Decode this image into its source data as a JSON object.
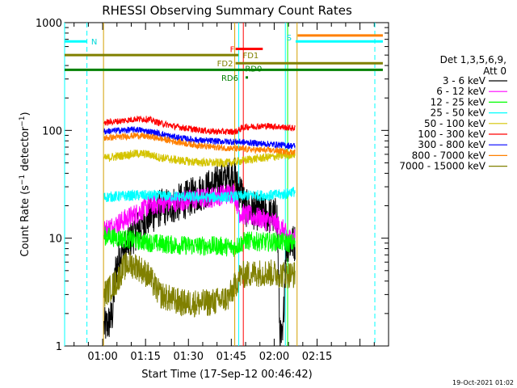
{
  "chart_data": {
    "type": "line",
    "title": "RHESSI Observing Summary Count Rates",
    "xlabel": "Start Time (17-Sep-12 00:46:42)",
    "ylabel": "Count Rate (s⁻¹ detector⁻¹)",
    "ylabel_main": "Count Rate (s",
    "ylabel_sup1": "−1",
    "ylabel_mid": " detector",
    "ylabel_sup2": "−1",
    "ylabel_end": ")",
    "yscale": "log",
    "ylim": [
      1,
      1000
    ],
    "xlim_minutes": [
      46.7,
      160
    ],
    "x_ticks": [
      {
        "m": 60,
        "label": "01:00"
      },
      {
        "m": 75,
        "label": "01:15"
      },
      {
        "m": 90,
        "label": "01:30"
      },
      {
        "m": 105,
        "label": "01:45"
      },
      {
        "m": 120,
        "label": "02:00"
      },
      {
        "m": 135,
        "label": "02:15"
      }
    ],
    "y_ticks": [
      {
        "v": 1,
        "label": "1"
      },
      {
        "v": 10,
        "label": "10"
      },
      {
        "v": 100,
        "label": "100"
      },
      {
        "v": 1000,
        "label": "1000"
      }
    ],
    "legend": {
      "placement": "right",
      "header": [
        "Det 1,3,5,6,9,",
        "Att 0"
      ],
      "entries": [
        {
          "label": "3 - 6 keV",
          "color": "#000000"
        },
        {
          "label": "6 - 12 keV",
          "color": "#ff00ff"
        },
        {
          "label": "12 - 25 keV",
          "color": "#00ff00"
        },
        {
          "label": "25 - 50 keV",
          "color": "#00ffff"
        },
        {
          "label": "50 - 100 keV",
          "color": "#d4c400"
        },
        {
          "label": "100 - 300 keV",
          "color": "#ff0000"
        },
        {
          "label": "300 - 800 keV",
          "color": "#0000ff"
        },
        {
          "label": "800 - 7000 keV",
          "color": "#ff8000"
        },
        {
          "label": "7000 - 15000 keV",
          "color": "#808000"
        }
      ]
    },
    "data_window_minutes": [
      60.5,
      127.3
    ],
    "series": [
      {
        "name": "3 - 6 keV",
        "color": "#000000",
        "points": [
          [
            60.5,
            1.5
          ],
          [
            62,
            1.6
          ],
          [
            63.5,
            2
          ],
          [
            64.5,
            5
          ],
          [
            66,
            7
          ],
          [
            68,
            8
          ],
          [
            70,
            10
          ],
          [
            72,
            12
          ],
          [
            75,
            15
          ],
          [
            78,
            17
          ],
          [
            80,
            19
          ],
          [
            84,
            20
          ],
          [
            88,
            22
          ],
          [
            92,
            25
          ],
          [
            96,
            28
          ],
          [
            100,
            32
          ],
          [
            104,
            37
          ],
          [
            106,
            39
          ],
          [
            107,
            30
          ],
          [
            108.5,
            27
          ],
          [
            110,
            19
          ],
          [
            113,
            18
          ],
          [
            116,
            17
          ],
          [
            119,
            16
          ],
          [
            121,
            16
          ],
          [
            122,
            1.2
          ],
          [
            123,
            1.1
          ],
          [
            124,
            8
          ],
          [
            125,
            9
          ]
        ]
      },
      {
        "name": "6 - 12 keV",
        "color": "#ff00ff",
        "points": [
          [
            60.5,
            12
          ],
          [
            64,
            13
          ],
          [
            66,
            14
          ],
          [
            68,
            15
          ],
          [
            72,
            17
          ],
          [
            76,
            20
          ],
          [
            80,
            21
          ],
          [
            86,
            22
          ],
          [
            92,
            23
          ],
          [
            98,
            24
          ],
          [
            104,
            26
          ],
          [
            106,
            27
          ],
          [
            108,
            17
          ],
          [
            112,
            16
          ],
          [
            116,
            15
          ],
          [
            120,
            14
          ],
          [
            123,
            12
          ],
          [
            125,
            10
          ]
        ]
      },
      {
        "name": "12 - 25 keV",
        "color": "#00ff00",
        "points": [
          [
            60.5,
            10.5
          ],
          [
            66,
            10
          ],
          [
            72,
            9.5
          ],
          [
            78,
            9
          ],
          [
            84,
            8.7
          ],
          [
            92,
            8.5
          ],
          [
            100,
            8.5
          ],
          [
            106,
            8.2
          ],
          [
            110,
            9.5
          ],
          [
            114,
            9.3
          ],
          [
            118,
            9.2
          ],
          [
            122,
            9.3
          ],
          [
            125,
            9
          ]
        ]
      },
      {
        "name": "25 - 50 keV",
        "color": "#00ffff",
        "points": [
          [
            60.5,
            24
          ],
          [
            66,
            24.5
          ],
          [
            72,
            25
          ],
          [
            78,
            24.8
          ],
          [
            84,
            24.5
          ],
          [
            90,
            24.2
          ],
          [
            96,
            24
          ],
          [
            102,
            24
          ],
          [
            107,
            24.5
          ],
          [
            112,
            25
          ],
          [
            118,
            25
          ],
          [
            124,
            25.5
          ],
          [
            126,
            27
          ]
        ]
      },
      {
        "name": "50 - 100 keV",
        "color": "#d4c400",
        "points": [
          [
            60.5,
            55
          ],
          [
            66,
            58
          ],
          [
            72,
            61
          ],
          [
            76,
            60
          ],
          [
            80,
            56
          ],
          [
            86,
            53
          ],
          [
            92,
            51
          ],
          [
            98,
            50
          ],
          [
            104,
            50
          ],
          [
            108,
            52
          ],
          [
            114,
            55
          ],
          [
            120,
            57
          ],
          [
            126,
            60
          ]
        ]
      },
      {
        "name": "100 - 300 keV",
        "color": "#ff0000",
        "points": [
          [
            60.5,
            118
          ],
          [
            66,
            122
          ],
          [
            72,
            128
          ],
          [
            76,
            127
          ],
          [
            80,
            117
          ],
          [
            86,
            108
          ],
          [
            92,
            102
          ],
          [
            98,
            98
          ],
          [
            104,
            97
          ],
          [
            107,
            98
          ],
          [
            108,
            103
          ],
          [
            110,
            108
          ],
          [
            114,
            109
          ],
          [
            118,
            110
          ],
          [
            122,
            108
          ],
          [
            126,
            105
          ]
        ]
      },
      {
        "name": "300 - 800 keV",
        "color": "#0000ff",
        "points": [
          [
            60.5,
            98
          ],
          [
            66,
            100
          ],
          [
            72,
            102
          ],
          [
            78,
            96
          ],
          [
            84,
            88
          ],
          [
            90,
            83
          ],
          [
            96,
            80
          ],
          [
            102,
            79
          ],
          [
            108,
            78
          ],
          [
            114,
            76
          ],
          [
            120,
            74
          ],
          [
            126,
            72
          ]
        ]
      },
      {
        "name": "800 - 7000 keV",
        "color": "#ff8000",
        "points": [
          [
            60.5,
            85
          ],
          [
            66,
            87
          ],
          [
            72,
            90
          ],
          [
            78,
            86
          ],
          [
            84,
            80
          ],
          [
            90,
            75
          ],
          [
            96,
            71
          ],
          [
            102,
            69
          ],
          [
            108,
            67
          ],
          [
            114,
            66
          ],
          [
            120,
            65
          ],
          [
            126,
            63
          ]
        ]
      },
      {
        "name": "7000 - 15000 keV",
        "color": "#808000",
        "points": [
          [
            60.5,
            3
          ],
          [
            63,
            3.5
          ],
          [
            65,
            4
          ],
          [
            67,
            5.2
          ],
          [
            69,
            5.8
          ],
          [
            72,
            5.5
          ],
          [
            76,
            4.5
          ],
          [
            80,
            3
          ],
          [
            84,
            2.7
          ],
          [
            88,
            2.5
          ],
          [
            92,
            2.5
          ],
          [
            96,
            2.5
          ],
          [
            100,
            2.6
          ],
          [
            104,
            2.8
          ],
          [
            106,
            3.5
          ],
          [
            108,
            4.5
          ],
          [
            112,
            4.7
          ],
          [
            116,
            4.8
          ],
          [
            120,
            4.7
          ],
          [
            123,
            4.6
          ],
          [
            125,
            4.6
          ]
        ]
      }
    ],
    "vlines": [
      {
        "m": 46.7,
        "color": "#00ffff",
        "style": "solid"
      },
      {
        "m": 54.5,
        "color": "#00ffff",
        "style": "dashed"
      },
      {
        "m": 60.3,
        "color": "#d4a000",
        "style": "solid"
      },
      {
        "m": 106.2,
        "color": "#d4a000",
        "style": "solid"
      },
      {
        "m": 107.6,
        "color": "#00ffff",
        "style": "solid"
      },
      {
        "m": 109.2,
        "color": "#ff0000",
        "style": "solid"
      },
      {
        "m": 123.9,
        "color": "#00ffff",
        "style": "solid"
      },
      {
        "m": 124.7,
        "color": "#00ff00",
        "style": "solid"
      },
      {
        "m": 128.0,
        "color": "#d4a000",
        "style": "solid"
      },
      {
        "m": 155.2,
        "color": "#00ffff",
        "style": "dashed"
      }
    ],
    "flag_bars": [
      {
        "label": "N",
        "color": "#00ffff",
        "y": 670,
        "x0": 46.7,
        "x1": 54.5,
        "label_m": 56
      },
      {
        "label": "S",
        "color": "#00ffff",
        "y": 670,
        "x0": 127.5,
        "x1": 158,
        "label_m": 124.3
      },
      {
        "label": "",
        "color": "#ff8000",
        "y": 760,
        "x0": 128.2,
        "x1": 158
      },
      {
        "label": "F",
        "color": "#ff0000",
        "y": 570,
        "x0": 106.5,
        "x1": 116,
        "label_m": 104.5
      },
      {
        "label": "FD1",
        "color": "#808000",
        "y": 500,
        "x0": 46.7,
        "x1": 107.5,
        "label_m": 109
      },
      {
        "label": "FD2",
        "color": "#808000",
        "y": 420,
        "x0": 106.5,
        "x1": 158,
        "label_m": 100
      },
      {
        "label": "RD0",
        "color": "#008000",
        "y": 365,
        "x0": 46.7,
        "x1": 158,
        "label_m": 109.8
      },
      {
        "label": "RD6",
        "color": "#008000",
        "y": 310,
        "x0": 110,
        "x1": 110.6,
        "label_m": 101.5
      }
    ],
    "footer_date": "19-Oct-2021 01:02"
  }
}
